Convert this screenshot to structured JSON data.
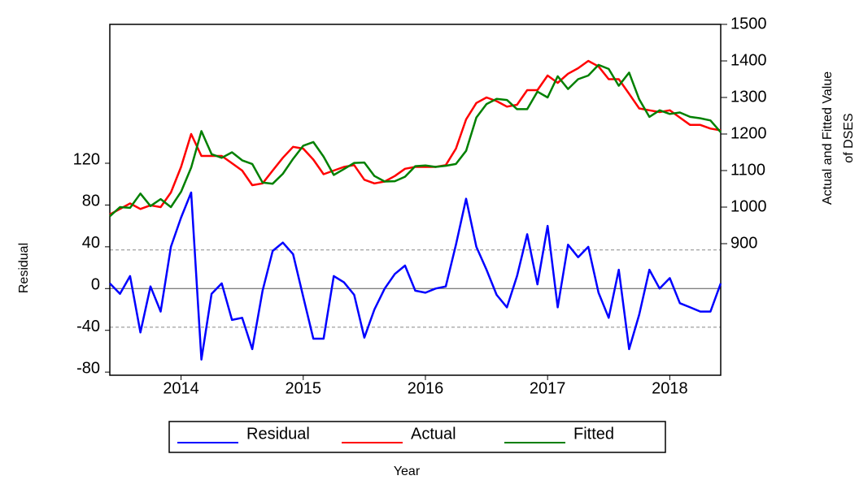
{
  "chart_data": {
    "type": "line",
    "x_label": "Year",
    "y_label": "Residual",
    "y2_label": [
      "Actual and Fitted Value",
      "of DSES"
    ],
    "x": [
      2013.917,
      2014.0,
      2014.083,
      2014.167,
      2014.25,
      2014.333,
      2014.417,
      2014.5,
      2014.583,
      2014.667,
      2014.75,
      2014.833,
      2014.917,
      2015.0,
      2015.083,
      2015.167,
      2015.25,
      2015.333,
      2015.417,
      2015.5,
      2015.583,
      2015.667,
      2015.75,
      2015.833,
      2015.917,
      2016.0,
      2016.083,
      2016.167,
      2016.25,
      2016.333,
      2016.417,
      2016.5,
      2016.583,
      2016.667,
      2016.75,
      2016.833,
      2016.917,
      2017.0,
      2017.083,
      2017.167,
      2017.25,
      2017.333,
      2017.417,
      2017.5,
      2017.583,
      2017.667,
      2017.75,
      2017.833,
      2017.917,
      2018.0,
      2018.083,
      2018.167,
      2018.25,
      2018.333,
      2018.417,
      2018.5,
      2018.583,
      2018.667,
      2018.75,
      2018.833,
      2018.917
    ],
    "xlim": [
      2013.917,
      2018.917
    ],
    "xticks": [
      {
        "value": 2014.5,
        "label": "2014"
      },
      {
        "value": 2015.5,
        "label": "2015"
      },
      {
        "value": 2016.5,
        "label": "2016"
      },
      {
        "value": 2017.5,
        "label": "2017"
      },
      {
        "value": 2018.5,
        "label": "2018"
      }
    ],
    "ylim": [
      -83,
      253
    ],
    "yticks": [
      -80,
      -40,
      0,
      40,
      80,
      120
    ],
    "y2lim": [
      540,
      1500
    ],
    "y2ticks": [
      900,
      1000,
      1100,
      1200,
      1300,
      1400,
      1500
    ],
    "hlines": [
      {
        "value": 0,
        "style": "solid"
      },
      {
        "value": 37,
        "style": "dashed"
      },
      {
        "value": -37,
        "style": "dashed"
      }
    ],
    "series": [
      {
        "name": "Residual",
        "color": "#0000ff",
        "axis": "y",
        "values": [
          5,
          -5,
          12,
          -42,
          2,
          -22,
          40,
          68,
          92,
          -68,
          -5,
          5,
          -30,
          -28,
          -58,
          -2,
          36,
          44,
          33,
          -8,
          -48,
          -48,
          12,
          6,
          -6,
          -47,
          -20,
          0,
          14,
          22,
          -2,
          -4,
          0,
          2,
          42,
          86,
          40,
          18,
          -6,
          -18,
          12,
          52,
          4,
          60,
          -18,
          42,
          30,
          40,
          -4,
          -28,
          18,
          -58,
          -25,
          18,
          0,
          10,
          -14,
          -18,
          -22,
          -22,
          5
        ]
      },
      {
        "name": "Actual",
        "color": "#ff0000",
        "axis": "y2",
        "values": [
          980,
          995,
          1010,
          995,
          1005,
          1000,
          1040,
          1110,
          1200,
          1140,
          1140,
          1140,
          1120,
          1100,
          1060,
          1065,
          1100,
          1135,
          1165,
          1160,
          1130,
          1090,
          1100,
          1110,
          1115,
          1075,
          1065,
          1070,
          1085,
          1105,
          1110,
          1110,
          1110,
          1115,
          1160,
          1240,
          1285,
          1300,
          1290,
          1275,
          1280,
          1320,
          1320,
          1360,
          1340,
          1365,
          1380,
          1400,
          1385,
          1350,
          1350,
          1310,
          1270,
          1265,
          1260,
          1265,
          1245,
          1225,
          1225,
          1215,
          1210
        ]
      },
      {
        "name": "Fitted",
        "color": "#008000",
        "axis": "y2",
        "values": [
          975,
          1000,
          998,
          1037,
          1003,
          1022,
          1000,
          1042,
          1108,
          1208,
          1145,
          1135,
          1150,
          1128,
          1118,
          1067,
          1064,
          1091,
          1132,
          1168,
          1178,
          1138,
          1088,
          1104,
          1121,
          1122,
          1085,
          1070,
          1071,
          1083,
          1112,
          1114,
          1110,
          1113,
          1118,
          1154,
          1245,
          1282,
          1296,
          1293,
          1268,
          1268,
          1316,
          1300,
          1358,
          1323,
          1350,
          1360,
          1389,
          1378,
          1332,
          1368,
          1295,
          1247,
          1265,
          1255,
          1259,
          1247,
          1243,
          1237,
          1205
        ]
      }
    ]
  }
}
